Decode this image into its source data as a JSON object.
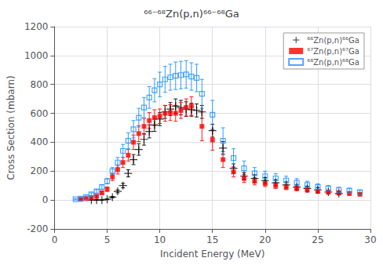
{
  "chart_data": {
    "type": "scatter",
    "title": "⁶⁶⁻⁶⁸Zn(p,n)⁶⁶⁻⁶⁸Ga",
    "xlabel": "Incident Energy (MeV)",
    "ylabel": "Cross Section (mbarn)",
    "xlim": [
      0,
      30
    ],
    "ylim": [
      -200,
      1200
    ],
    "xticks": [
      0,
      5,
      10,
      15,
      20,
      25,
      30
    ],
    "yticks": [
      -200,
      0,
      200,
      400,
      600,
      800,
      1000,
      1200
    ],
    "grid": true,
    "legend": "upper right",
    "series": [
      {
        "name": "⁶⁶Zn(p,n)⁶⁶Ga",
        "color": "black",
        "marker": "plus",
        "x": [
          3.5,
          4.0,
          4.5,
          5.0,
          5.5,
          6.0,
          6.5,
          7.0,
          7.5,
          8.0,
          8.5,
          9.0,
          9.5,
          10.0,
          10.5,
          11.0,
          11.5,
          12.0,
          12.5,
          13.0,
          13.5,
          14.0,
          15.0,
          16.0,
          17.0,
          18.0,
          19.0,
          20.0,
          21.0,
          22.0,
          23.0,
          24.0,
          25.0,
          26.0,
          27.0
        ],
        "values": [
          0,
          0,
          0,
          5,
          20,
          60,
          100,
          185,
          280,
          350,
          420,
          475,
          520,
          560,
          610,
          630,
          650,
          640,
          630,
          625,
          620,
          610,
          480,
          360,
          220,
          165,
          150,
          135,
          120,
          105,
          90,
          80,
          70,
          55,
          45
        ],
        "yerr": [
          2,
          2,
          2,
          3,
          5,
          10,
          15,
          25,
          35,
          40,
          40,
          45,
          45,
          45,
          45,
          45,
          50,
          50,
          50,
          45,
          45,
          45,
          45,
          45,
          30,
          25,
          25,
          20,
          20,
          20,
          15,
          15,
          15,
          12,
          10
        ]
      },
      {
        "name": "⁶⁷Zn(p,n)⁶⁷Ga",
        "color": "red",
        "marker": "square",
        "x": [
          2.5,
          3.0,
          3.5,
          4.0,
          4.5,
          5.0,
          5.5,
          6.0,
          6.5,
          7.0,
          7.5,
          8.0,
          8.5,
          9.0,
          9.5,
          10.0,
          10.5,
          11.0,
          11.5,
          12.0,
          12.5,
          13.0,
          14.0,
          15.0,
          16.0,
          17.0,
          18.0,
          19.0,
          20.0,
          21.0,
          22.0,
          23.0,
          24.0,
          25.0,
          26.0,
          27.0,
          28.0,
          29.0
        ],
        "values": [
          5,
          10,
          15,
          25,
          50,
          75,
          160,
          210,
          260,
          310,
          400,
          460,
          510,
          550,
          570,
          580,
          600,
          605,
          600,
          620,
          640,
          650,
          510,
          415,
          280,
          195,
          150,
          130,
          115,
          100,
          90,
          80,
          70,
          60,
          55,
          50,
          45,
          40
        ],
        "yerr": [
          3,
          4,
          5,
          8,
          10,
          15,
          25,
          30,
          35,
          40,
          50,
          55,
          55,
          55,
          55,
          50,
          55,
          55,
          55,
          55,
          60,
          65,
          100,
          70,
          55,
          35,
          28,
          25,
          22,
          20,
          18,
          15,
          15,
          12,
          12,
          10,
          10,
          8
        ]
      },
      {
        "name": "⁶⁸Zn(p,n)⁶⁸Ga",
        "color": "#1e90ff",
        "marker": "open square",
        "x": [
          2.0,
          2.5,
          3.0,
          3.5,
          4.0,
          4.5,
          5.0,
          5.5,
          6.0,
          6.5,
          7.0,
          7.5,
          8.0,
          8.5,
          9.0,
          9.5,
          10.0,
          10.5,
          11.0,
          11.5,
          12.0,
          12.5,
          13.0,
          13.5,
          14.0,
          15.0,
          16.0,
          17.0,
          18.0,
          19.0,
          20.0,
          21.0,
          22.0,
          23.0,
          24.0,
          25.0,
          26.0,
          27.0,
          28.0,
          29.0
        ],
        "values": [
          5,
          10,
          20,
          40,
          60,
          90,
          130,
          200,
          260,
          340,
          410,
          490,
          570,
          640,
          710,
          760,
          800,
          835,
          850,
          860,
          865,
          870,
          855,
          845,
          735,
          590,
          410,
          290,
          220,
          185,
          165,
          150,
          135,
          120,
          105,
          90,
          80,
          70,
          65,
          55
        ],
        "yerr": [
          4,
          5,
          8,
          10,
          12,
          15,
          18,
          25,
          35,
          45,
          55,
          60,
          65,
          70,
          75,
          80,
          85,
          90,
          90,
          95,
          95,
          95,
          95,
          95,
          100,
          100,
          90,
          65,
          50,
          40,
          35,
          32,
          30,
          28,
          25,
          22,
          20,
          18,
          16,
          14
        ]
      }
    ]
  }
}
